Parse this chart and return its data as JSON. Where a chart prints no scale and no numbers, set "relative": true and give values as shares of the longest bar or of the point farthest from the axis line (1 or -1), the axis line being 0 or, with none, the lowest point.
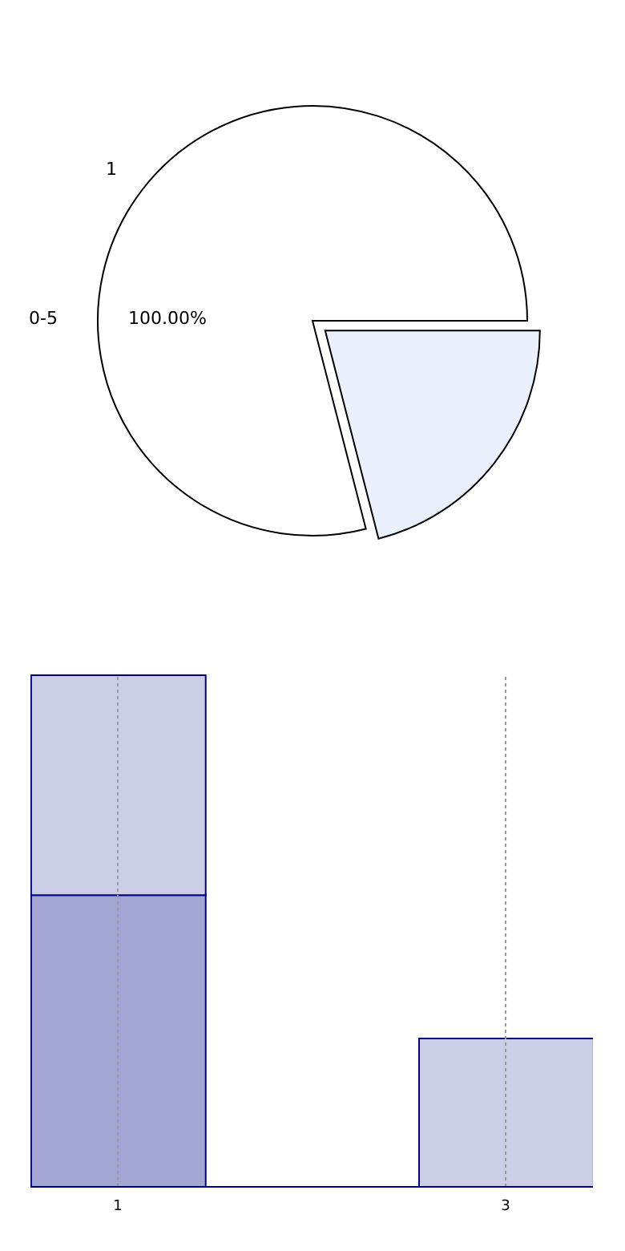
{
  "chart_data": [
    {
      "type": "pie",
      "categories": [
        null,
        null
      ],
      "values": [
        79,
        21
      ],
      "colors": [
        "#ffffff",
        "#ebf1fc"
      ],
      "annotations": [
        "1",
        "0-5",
        "100.00%"
      ]
    },
    {
      "type": "bar",
      "relative": true,
      "stacked": true,
      "x": [
        1,
        3
      ],
      "xlim": [
        0.55,
        3.45
      ],
      "xticks": [
        1,
        3
      ],
      "grid": "x",
      "series": [
        {
          "color": "#a3a6d3",
          "values": [
            0.57,
            null
          ]
        },
        {
          "color": "#cccde6",
          "values": [
            0.43,
            0.29
          ]
        }
      ]
    }
  ]
}
